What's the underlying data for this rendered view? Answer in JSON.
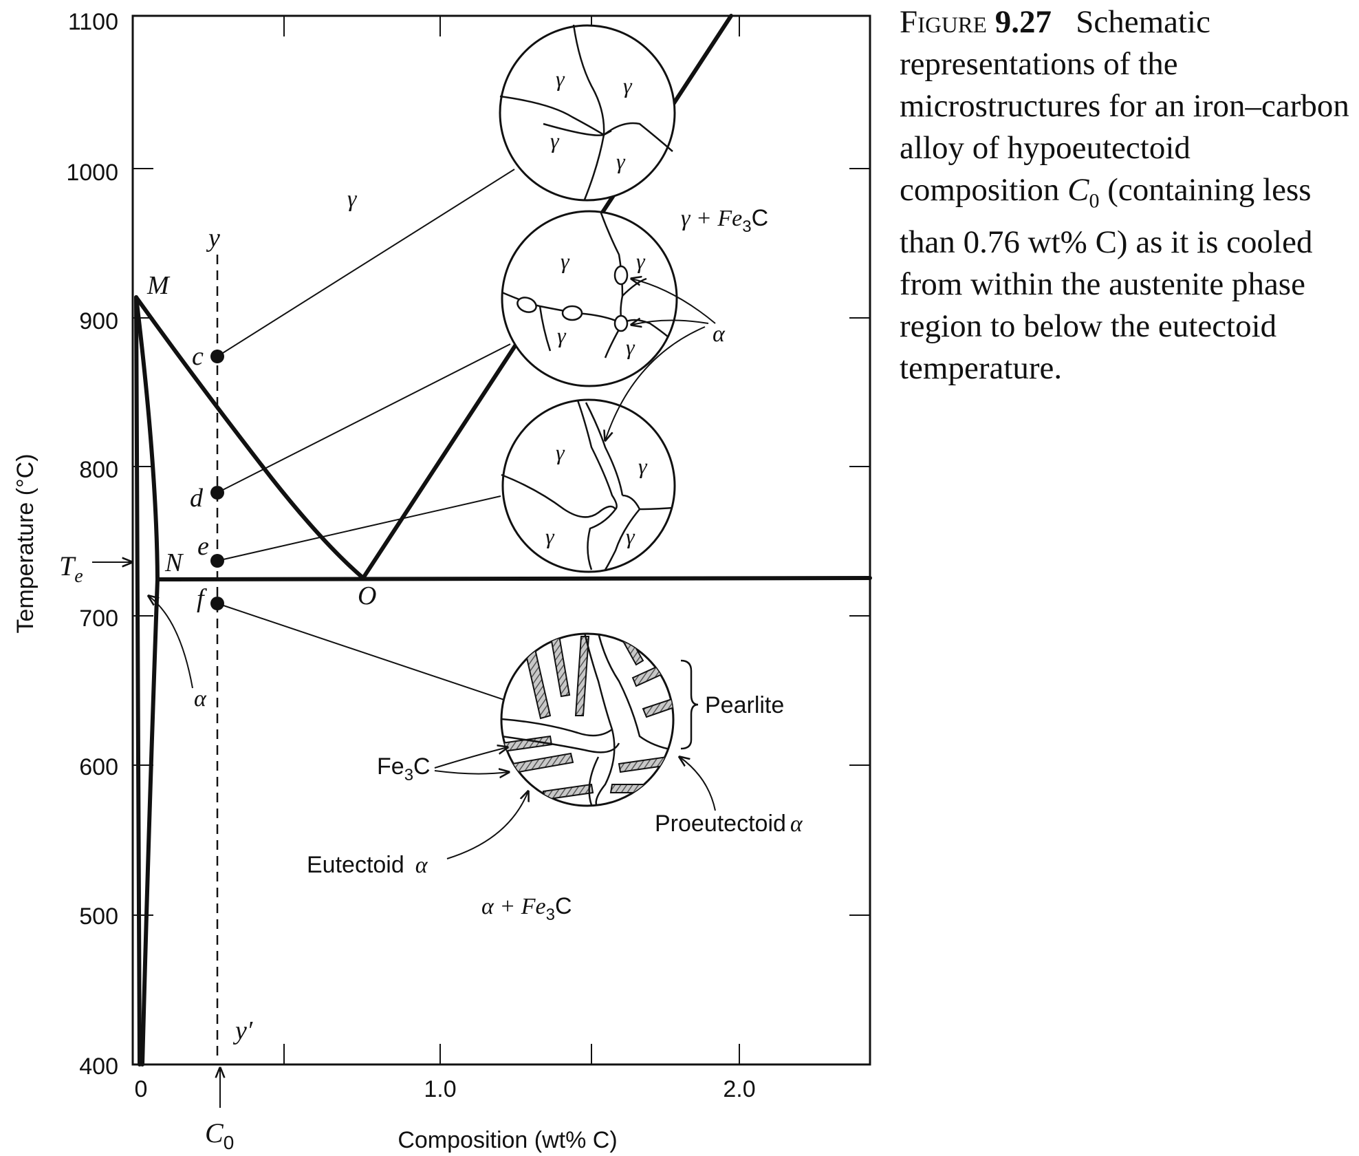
{
  "caption": {
    "figure_word": "Figure",
    "figure_number": "9.27",
    "text_before_symbol": "Schematic representations of the microstructures for an iron–carbon alloy of hypoeutectoid composition",
    "symbol": "C",
    "symbol_sub": "0",
    "text_after_symbol": "(containing less than 0.76 wt% C) as it is cooled from within the austenite phase region to below the eutectoid temperature."
  },
  "axes": {
    "ylabel": "Temperature (°C)",
    "xlabel": "Composition (wt% C)",
    "y_ticks": [
      "1100",
      "1000",
      "900",
      "800",
      "700",
      "600",
      "500",
      "400"
    ],
    "x_ticks": [
      "0",
      "1.0",
      "2.0"
    ],
    "te_label": "T",
    "te_sub": "e",
    "c0_label": "C",
    "c0_sub": "0"
  },
  "phase_labels": {
    "gamma": "γ",
    "gamma_fe3c_a": "γ + Fe",
    "gamma_fe3c_sub": "3",
    "gamma_fe3c_b": "C",
    "alpha_fe3c_a": "α + Fe",
    "alpha_fe3c_sub": "3",
    "alpha_fe3c_b": "C",
    "alpha_left": "α",
    "alpha_right": "α"
  },
  "point_labels": {
    "M": "M",
    "N": "N",
    "O": "O",
    "c": "c",
    "d": "d",
    "e": "e",
    "f": "f",
    "y": "y",
    "y_prime": "y′"
  },
  "grain_label": "γ",
  "annotations": {
    "pearlite": "Pearlite",
    "fe3c_a": "Fe",
    "fe3c_sub": "3",
    "fe3c_b": "C",
    "proeutectoid": "Proeutectoid",
    "proeutectoid_sym": "α",
    "eutectoid": "Eutectoid",
    "eutectoid_sym": "α"
  },
  "colors": {
    "ink": "#111111",
    "stripe_fill": "#9a9a9a"
  }
}
